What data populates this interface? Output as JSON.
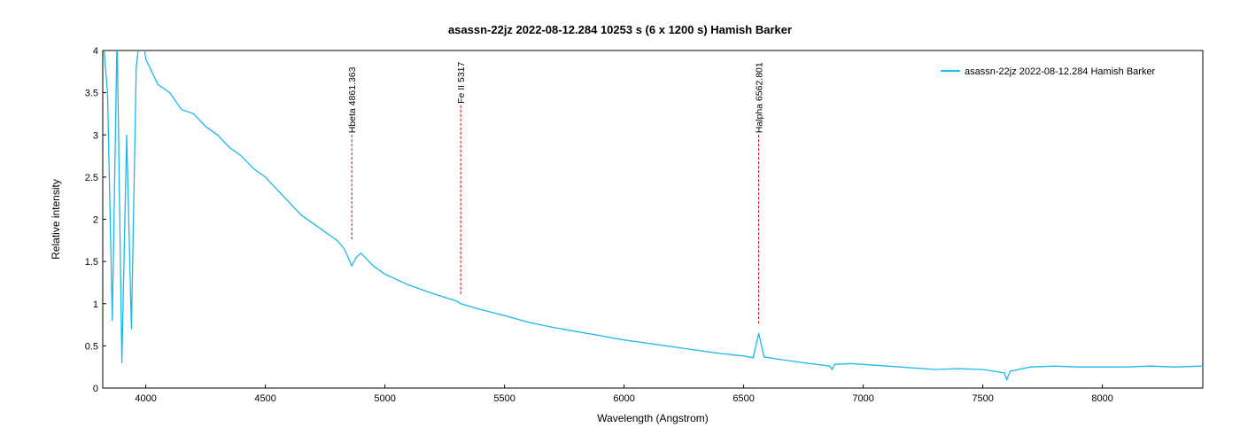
{
  "chart_data": {
    "type": "line",
    "title": "asassn-22jz   2022-08-12.284   10253 s (6 x 1200 s)   Hamish Barker",
    "xlabel": "Wavelength (Angstrom)",
    "ylabel": "Relative intensity",
    "xlim": [
      3820,
      8420
    ],
    "ylim": [
      0,
      4
    ],
    "xticks": [
      4000,
      4500,
      5000,
      5500,
      6000,
      6500,
      7000,
      7500,
      8000
    ],
    "yticks": [
      0,
      0.5,
      1,
      1.5,
      2,
      2.5,
      3,
      3.5,
      4
    ],
    "grid": false,
    "legend_position": "top-right",
    "series": [
      {
        "name": "asassn-22jz  2022-08-12.284  Hamish Barker",
        "color": "#1ab8ec",
        "x": [
          3820,
          3840,
          3860,
          3880,
          3900,
          3920,
          3940,
          3960,
          3980,
          4000,
          4050,
          4100,
          4150,
          4200,
          4250,
          4300,
          4350,
          4400,
          4450,
          4500,
          4550,
          4600,
          4650,
          4700,
          4750,
          4800,
          4830,
          4861,
          4880,
          4900,
          4950,
          5000,
          5100,
          5200,
          5300,
          5317,
          5400,
          5500,
          5600,
          5700,
          5800,
          5900,
          6000,
          6100,
          6200,
          6300,
          6400,
          6500,
          6540,
          6563,
          6585,
          6650,
          6750,
          6860,
          6870,
          6880,
          6950,
          7000,
          7100,
          7200,
          7300,
          7400,
          7500,
          7590,
          7600,
          7615,
          7700,
          7800,
          7900,
          8000,
          8100,
          8200,
          8300,
          8420
        ],
        "y": [
          4.2,
          3.5,
          0.8,
          4.2,
          0.3,
          3.0,
          0.7,
          3.8,
          4.3,
          3.9,
          3.6,
          3.5,
          3.3,
          3.25,
          3.1,
          3.0,
          2.85,
          2.75,
          2.6,
          2.5,
          2.35,
          2.2,
          2.05,
          1.95,
          1.85,
          1.75,
          1.65,
          1.45,
          1.55,
          1.6,
          1.45,
          1.35,
          1.22,
          1.12,
          1.03,
          1.0,
          0.93,
          0.86,
          0.78,
          0.72,
          0.67,
          0.62,
          0.57,
          0.53,
          0.49,
          0.45,
          0.41,
          0.38,
          0.36,
          0.65,
          0.37,
          0.34,
          0.3,
          0.26,
          0.22,
          0.28,
          0.29,
          0.28,
          0.26,
          0.24,
          0.22,
          0.23,
          0.22,
          0.18,
          0.1,
          0.2,
          0.25,
          0.26,
          0.25,
          0.25,
          0.25,
          0.26,
          0.25,
          0.26
        ]
      }
    ],
    "annotations": [
      {
        "label": "Hbeta 4861.363",
        "x": 4861.363,
        "color": "#cc0000",
        "label_y": 3.0,
        "end_y": 1.75
      },
      {
        "label": "Fe II 5317",
        "x": 5317,
        "color": "#cc0000",
        "label_y": 3.35,
        "end_y": 1.1
      },
      {
        "label": "Halpha 6562.801",
        "x": 6562.801,
        "color": "#cc0000",
        "label_y": 3.0,
        "end_y": 0.75
      }
    ]
  }
}
